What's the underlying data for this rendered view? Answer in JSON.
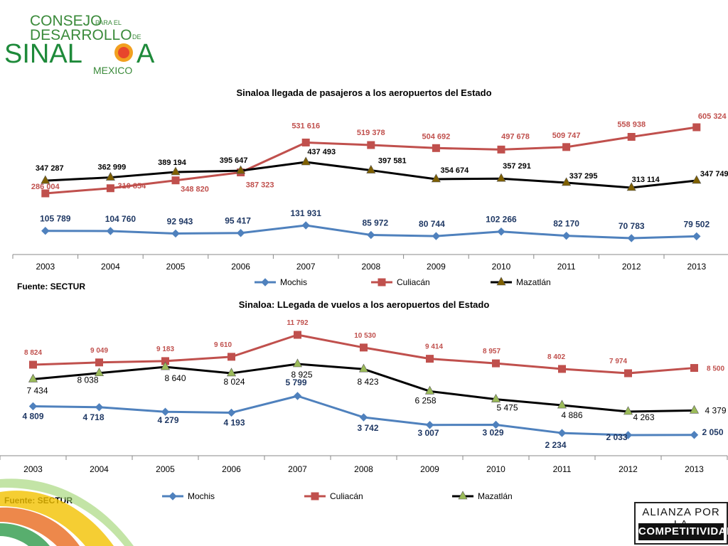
{
  "logo": {
    "line1": "CONSEJO",
    "line1_small": "PARA EL",
    "line2": "DESARROLLO",
    "line2_small": "DE",
    "line3a": "SINAL",
    "line3b": "A",
    "line4": "MEXICO"
  },
  "badge": {
    "line1": "ALIANZA POR LA",
    "line2": "COMPETITIVIDAD"
  },
  "colors": {
    "mochis": "#4f81bd",
    "culiacan": "#c0504d",
    "mazatlan": "#000000",
    "mochis_label": "#1f3864",
    "marker_mazatlan1": "#7f6000",
    "marker_mazatlan2": "#9bbb59"
  },
  "chart_data": [
    {
      "type": "line",
      "title": "Sinaloa llegada de pasajeros a los aeropuertos del Estado",
      "source": "Fuente: SECTUR",
      "categories": [
        "2003",
        "2004",
        "2005",
        "2006",
        "2007",
        "2008",
        "2009",
        "2010",
        "2011",
        "2012",
        "2013"
      ],
      "legend_position": "bottom",
      "grid": false,
      "series": [
        {
          "name": "Mochis",
          "values": [
            105789,
            104760,
            92943,
            95417,
            131931,
            85972,
            80744,
            102266,
            82170,
            70783,
            79502
          ],
          "labels": [
            "105 789",
            "104 760",
            "92 943",
            "95 417",
            "131 931",
            "85 972",
            "80 744",
            "102 266",
            "82 170",
            "70 783",
            "79 502"
          ]
        },
        {
          "name": "Culiacán",
          "values": [
            286004,
            310854,
            348820,
            387323,
            531616,
            519378,
            504692,
            497678,
            509747,
            558938,
            605324
          ],
          "labels": [
            "286 004",
            "310 854",
            "348 820",
            "387 323",
            "531 616",
            "519 378",
            "504 692",
            "497 678",
            "509 747",
            "558 938",
            "605 324"
          ]
        },
        {
          "name": "Mazatlán",
          "values": [
            347287,
            362999,
            389194,
            395647,
            437493,
            397581,
            354674,
            357291,
            337295,
            313114,
            347749
          ],
          "labels": [
            "347 287",
            "362 999",
            "389 194",
            "395 647",
            "437 493",
            "397 581",
            "354 674",
            "357 291",
            "337 295",
            "313 114",
            "347 749"
          ]
        }
      ]
    },
    {
      "type": "line",
      "title": "Sinaloa: LLegada de vuelos a los aeropuertos del Estado",
      "source": "Fuente: SECTUR",
      "categories": [
        "2003",
        "2004",
        "2005",
        "2006",
        "2007",
        "2008",
        "2009",
        "2010",
        "2011",
        "2012",
        "2013"
      ],
      "legend_position": "bottom",
      "grid": false,
      "series": [
        {
          "name": "Mochis",
          "values": [
            4809,
            4718,
            4279,
            4193,
            5799,
            3742,
            3007,
            3029,
            2234,
            2033,
            2050
          ],
          "labels": [
            "4 809",
            "4 718",
            "4 279",
            "4 193",
            "5 799",
            "3 742",
            "3 007",
            "3 029",
            "2 234",
            "2 033",
            "2 050"
          ]
        },
        {
          "name": "Culiacán",
          "values": [
            8824,
            9049,
            9183,
            9610,
            11792,
            10530,
            9414,
            8957,
            8402,
            7974,
            8500
          ],
          "labels": [
            "8 824",
            "9 049",
            "9 183",
            "9 610",
            "11 792",
            "10 530",
            "9 414",
            "8 957",
            "8 402",
            "7 974",
            "8 500"
          ]
        },
        {
          "name": "Mazatlán",
          "values": [
            7434,
            8038,
            8640,
            8024,
            8925,
            8423,
            6258,
            5475,
            4886,
            4263,
            4379
          ],
          "labels": [
            "7 434",
            "8 038",
            "8 640",
            "8 024",
            "8 925",
            "8 423",
            "6 258",
            "5 475",
            "4 886",
            "4 263",
            "4 379"
          ]
        }
      ]
    }
  ]
}
